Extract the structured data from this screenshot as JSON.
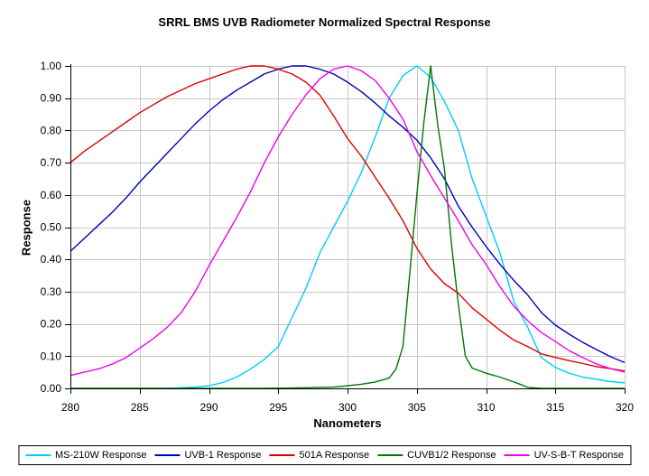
{
  "colors": {
    "background": "#FFFFFF",
    "gridline": "#C6C6C6",
    "axis": "#000000",
    "text": "#000000"
  },
  "chart_data": {
    "type": "line",
    "title": "SRRL BMS UVB Radiometer Normalized Spectral Response",
    "xlabel": "Nanometers",
    "ylabel": "Response",
    "xlim": [
      280,
      320
    ],
    "ylim": [
      0,
      1
    ],
    "grid": true,
    "legend_position": "bottom",
    "x_ticks": [
      280,
      285,
      290,
      295,
      300,
      305,
      310,
      315,
      320
    ],
    "y_tick_labels": [
      "0.00",
      "0.10",
      "0.20",
      "0.30",
      "0.40",
      "0.50",
      "0.60",
      "0.70",
      "0.80",
      "0.90",
      "1.00"
    ],
    "x": [
      280,
      281,
      282,
      283,
      284,
      285,
      286,
      287,
      288,
      289,
      290,
      291,
      292,
      293,
      294,
      295,
      296,
      297,
      298,
      299,
      300,
      301,
      302,
      303,
      304,
      305,
      306,
      307,
      308,
      309,
      310,
      311,
      312,
      313,
      314,
      315,
      316,
      317,
      318,
      319,
      320
    ],
    "series": [
      {
        "name": "MS-210W Response",
        "color": "#00CCFF",
        "y": [
          0,
          0,
          0,
          0,
          0,
          0,
          0,
          0,
          0.002,
          0.004,
          0.008,
          0.018,
          0.035,
          0.06,
          0.09,
          0.13,
          0.22,
          0.31,
          0.42,
          0.5,
          0.58,
          0.67,
          0.78,
          0.9,
          0.97,
          1.0,
          0.965,
          0.89,
          0.8,
          0.65,
          0.535,
          0.42,
          0.27,
          0.19,
          0.095,
          0.065,
          0.047,
          0.035,
          0.028,
          0.021,
          0.017
        ]
      },
      {
        "name": "UVB-1 Response",
        "color": "#0000BB",
        "y": [
          0.425,
          0.465,
          0.505,
          0.545,
          0.59,
          0.64,
          0.685,
          0.73,
          0.775,
          0.82,
          0.86,
          0.895,
          0.925,
          0.95,
          0.975,
          0.99,
          1.0,
          1.0,
          0.99,
          0.975,
          0.95,
          0.92,
          0.885,
          0.845,
          0.81,
          0.77,
          0.715,
          0.65,
          0.565,
          0.5,
          0.44,
          0.385,
          0.335,
          0.29,
          0.235,
          0.196,
          0.168,
          0.142,
          0.12,
          0.098,
          0.08
        ]
      },
      {
        "name": "501A Response",
        "color": "#DD0000",
        "y": [
          0.7,
          0.735,
          0.765,
          0.795,
          0.825,
          0.855,
          0.88,
          0.905,
          0.925,
          0.945,
          0.96,
          0.975,
          0.99,
          1.0,
          1.0,
          0.99,
          0.975,
          0.95,
          0.91,
          0.845,
          0.775,
          0.72,
          0.655,
          0.59,
          0.52,
          0.435,
          0.37,
          0.325,
          0.295,
          0.25,
          0.215,
          0.18,
          0.15,
          0.13,
          0.107,
          0.096,
          0.086,
          0.077,
          0.067,
          0.061,
          0.054
        ]
      },
      {
        "name": "CUVB1/2 Response",
        "color": "#007700",
        "x": [
          280,
          285,
          290,
          294,
          296,
          297,
          298,
          299,
          300,
          301,
          302,
          303,
          303.5,
          304,
          304.5,
          305,
          305.5,
          306,
          306.5,
          307,
          307.5,
          308,
          308.5,
          309,
          309.5,
          310,
          311,
          312,
          312.5,
          313,
          314,
          316,
          318,
          320
        ],
        "y": [
          0,
          0,
          0,
          0,
          0.001,
          0.002,
          0.003,
          0.004,
          0.008,
          0.013,
          0.02,
          0.032,
          0.06,
          0.13,
          0.36,
          0.6,
          0.82,
          1.0,
          0.82,
          0.68,
          0.45,
          0.26,
          0.1,
          0.063,
          0.055,
          0.047,
          0.035,
          0.02,
          0.012,
          0.003,
          0,
          0,
          0,
          0
        ]
      },
      {
        "name": "UV-S-B-T Response",
        "color": "#EE00EE",
        "y": [
          0.04,
          0.05,
          0.06,
          0.075,
          0.095,
          0.125,
          0.155,
          0.19,
          0.235,
          0.3,
          0.38,
          0.455,
          0.53,
          0.61,
          0.7,
          0.78,
          0.85,
          0.91,
          0.96,
          0.99,
          1.0,
          0.985,
          0.955,
          0.9,
          0.835,
          0.735,
          0.66,
          0.59,
          0.52,
          0.445,
          0.385,
          0.315,
          0.255,
          0.21,
          0.173,
          0.145,
          0.117,
          0.095,
          0.075,
          0.061,
          0.051
        ]
      }
    ]
  }
}
